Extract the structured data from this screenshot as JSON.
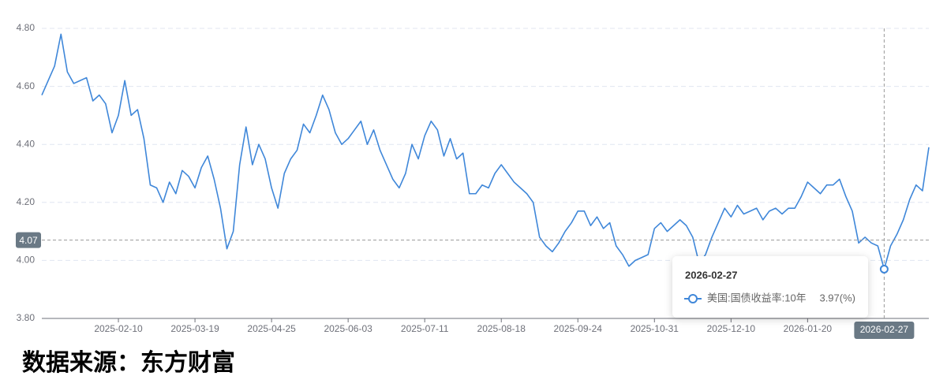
{
  "chart_data": {
    "type": "line",
    "categories": [
      null,
      null,
      null,
      null,
      null,
      null,
      null,
      null,
      null,
      null,
      null,
      null,
      "2025-02-10",
      null,
      null,
      null,
      null,
      null,
      null,
      null,
      null,
      null,
      null,
      null,
      "2025-03-19",
      null,
      null,
      null,
      null,
      null,
      null,
      null,
      null,
      null,
      null,
      null,
      "2025-04-25",
      null,
      null,
      null,
      null,
      null,
      null,
      null,
      null,
      null,
      null,
      null,
      "2025-06-03",
      null,
      null,
      null,
      null,
      null,
      null,
      null,
      null,
      null,
      null,
      null,
      "2025-07-11",
      null,
      null,
      null,
      null,
      null,
      null,
      null,
      null,
      null,
      null,
      null,
      "2025-08-18",
      null,
      null,
      null,
      null,
      null,
      null,
      null,
      null,
      null,
      null,
      null,
      "2025-09-24",
      null,
      null,
      null,
      null,
      null,
      null,
      null,
      null,
      null,
      null,
      null,
      "2025-10-31",
      null,
      null,
      null,
      null,
      null,
      null,
      null,
      null,
      null,
      null,
      null,
      "2025-12-10",
      null,
      null,
      null,
      null,
      null,
      null,
      null,
      null,
      null,
      null,
      null,
      "2026-01-20",
      null,
      null,
      null,
      null,
      null,
      null,
      null,
      null,
      null,
      null,
      null,
      "2026-02-27",
      null,
      null,
      null,
      null,
      null,
      null,
      null
    ],
    "series": [
      {
        "name": "美国:国债收益率:10年",
        "color": "#3f87d9",
        "values": [
          4.57,
          4.62,
          4.67,
          4.78,
          4.65,
          4.61,
          4.62,
          4.63,
          4.55,
          4.57,
          4.54,
          4.44,
          4.5,
          4.62,
          4.5,
          4.52,
          4.42,
          4.26,
          4.25,
          4.2,
          4.27,
          4.23,
          4.31,
          4.29,
          4.25,
          4.32,
          4.36,
          4.28,
          4.18,
          4.04,
          4.1,
          4.33,
          4.46,
          4.33,
          4.4,
          4.35,
          4.25,
          4.18,
          4.3,
          4.35,
          4.38,
          4.47,
          4.44,
          4.5,
          4.57,
          4.52,
          4.44,
          4.4,
          4.42,
          4.45,
          4.48,
          4.4,
          4.45,
          4.38,
          4.33,
          4.28,
          4.25,
          4.3,
          4.4,
          4.35,
          4.43,
          4.48,
          4.45,
          4.36,
          4.42,
          4.35,
          4.37,
          4.23,
          4.23,
          4.26,
          4.25,
          4.3,
          4.33,
          4.3,
          4.27,
          4.25,
          4.23,
          4.2,
          4.08,
          4.05,
          4.03,
          4.06,
          4.1,
          4.13,
          4.17,
          4.17,
          4.12,
          4.15,
          4.11,
          4.13,
          4.05,
          4.02,
          3.98,
          4.0,
          4.01,
          4.02,
          4.11,
          4.13,
          4.1,
          4.12,
          4.14,
          4.12,
          4.08,
          3.99,
          4.02,
          4.08,
          4.13,
          4.18,
          4.15,
          4.19,
          4.16,
          4.17,
          4.18,
          4.14,
          4.17,
          4.18,
          4.16,
          4.18,
          4.18,
          4.22,
          4.27,
          4.25,
          4.23,
          4.26,
          4.26,
          4.28,
          4.22,
          4.17,
          4.06,
          4.08,
          4.06,
          4.05,
          3.97,
          4.05,
          4.09,
          4.14,
          4.21,
          4.26,
          4.24,
          4.39
        ]
      }
    ],
    "ylim": [
      3.8,
      4.8
    ],
    "yticks": [
      {
        "value": 3.8,
        "label": "3.80"
      },
      {
        "value": 4.0,
        "label": "4.00"
      },
      {
        "value": 4.2,
        "label": "4.20"
      },
      {
        "value": 4.4,
        "label": "4.40"
      },
      {
        "value": 4.6,
        "label": "4.60"
      },
      {
        "value": 4.8,
        "label": "4.80"
      }
    ],
    "grid": true,
    "crosshair_y": 4.07,
    "tooltip_value_label": "3.97(%)",
    "source": "数据来源：东方财富"
  }
}
